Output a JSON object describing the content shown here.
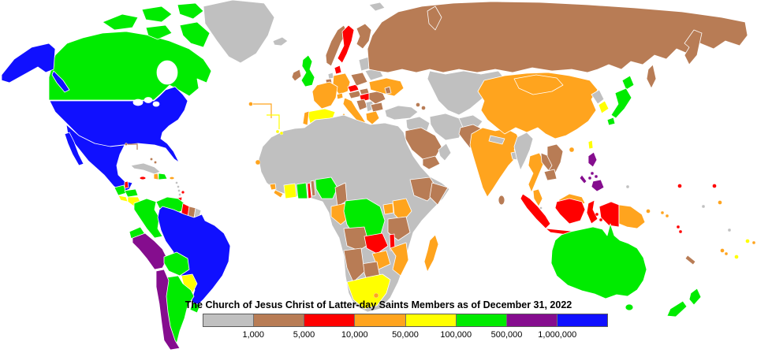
{
  "title": "The Church of Jesus Christ of Latter-day Saints Members as of December 31, 2022",
  "legend": {
    "labels": [
      "1,000",
      "5,000",
      "10,000",
      "50,000",
      "100,000",
      "500,000",
      "1,000,000"
    ],
    "order": [
      "gray",
      "brown",
      "red",
      "orange",
      "yellow",
      "green",
      "purple",
      "blue"
    ]
  },
  "palette": {
    "gray": "#C0C0C0",
    "brown": "#B87C55",
    "red": "#FF0000",
    "orange": "#FFA41E",
    "yellow": "#FFFF00",
    "green": "#00EB00",
    "purple": "#850D8E",
    "blue": "#1010FF",
    "water": "#FFFFFF"
  },
  "regions": {
    "greenland": "gray",
    "canada": "green",
    "united_states": "blue",
    "mexico": "blue",
    "belize": "red",
    "guatemala": "green",
    "honduras": "green",
    "el_salvador": "yellow",
    "nicaragua": "yellow",
    "costa_rica": "green",
    "panama": "green",
    "cuba": "gray",
    "jamaica": "red",
    "haiti": "orange",
    "dominican_republic": "green",
    "puerto_rico": "orange",
    "bahamas": "brown",
    "lesser_antilles": "gray",
    "barbados": "red",
    "trinidad_and_tobago": "red",
    "colombia": "green",
    "venezuela": "green",
    "guyana": "red",
    "suriname": "brown",
    "french_guiana": "gray",
    "ecuador": "green",
    "peru": "purple",
    "brazil": "blue",
    "bolivia": "green",
    "paraguay": "yellow",
    "chile": "purple",
    "argentina": "green",
    "uruguay": "green",
    "iceland": "gray",
    "united_kingdom": "green",
    "ireland": "brown",
    "norway": "brown",
    "sweden": "red",
    "finland": "brown",
    "denmark": "red",
    "netherlands": "gray",
    "belgium": "brown",
    "germany": "orange",
    "france": "orange",
    "spain": "yellow",
    "portugal": "orange",
    "italy": "orange",
    "switzerland": "orange",
    "czechia": "red",
    "austria": "brown",
    "slovakia": "brown",
    "poland": "brown",
    "hungary": "red",
    "romania": "brown",
    "bulgaria": "brown",
    "serbia": "gray",
    "croatia": "brown",
    "greece": "orange",
    "ukraine": "orange",
    "belarus": "gray",
    "baltic_states": "gray",
    "moldova": "brown",
    "russia": "brown",
    "svalbard": "gray",
    "kazakhstan_central_asia": "gray",
    "turkey": "gray",
    "levant_iraq": "gray",
    "iran": "gray",
    "afghanistan": "gray",
    "saudi_arabia": "brown",
    "yemen": "brown",
    "oman": "gray",
    "caucasus": "brown",
    "pakistan": "brown",
    "india": "orange",
    "nepal": "gray",
    "bangladesh": "gray",
    "sri_lanka": "brown",
    "china": "orange",
    "mongolia": "orange",
    "north_korea": "gray",
    "south_korea": "yellow",
    "japan": "green",
    "taiwan": "yellow",
    "myanmar": "gray",
    "thailand": "orange",
    "laos": "brown",
    "vietnam": "brown",
    "cambodia": "brown",
    "malaysia": "orange",
    "singapore": "gray",
    "indonesia": "red",
    "philippines": "purple",
    "papua_new_guinea": "orange",
    "north_africa": "gray",
    "sierra_leone": "orange",
    "liberia": "orange",
    "cote_divoire": "yellow",
    "ghana": "green",
    "togo": "red",
    "benin": "brown",
    "nigeria": "green",
    "cameroon": "brown",
    "congo_gabon": "orange",
    "dr_congo": "green",
    "uganda": "orange",
    "kenya": "orange",
    "tanzania": "brown",
    "ethiopia": "brown",
    "somalia": "brown",
    "angola": "brown",
    "zambia": "red",
    "malawi": "red",
    "mozambique": "orange",
    "zimbabwe": "orange",
    "botswana": "brown",
    "namibia": "brown",
    "south_africa": "yellow",
    "lesotho": "orange",
    "madagascar": "orange",
    "cape_verde": "orange",
    "azores": "orange",
    "canary_islands": "yellow",
    "australia": "green",
    "new_zealand": "green",
    "solomon_islands": "orange",
    "vanuatu": "red",
    "new_caledonia": "brown",
    "fiji": "orange",
    "samoa": "yellow",
    "american_samoa": "orange",
    "tonga": "yellow",
    "palau": "gray",
    "micronesia": "red",
    "marshall_islands": "red",
    "kiribati": "orange",
    "nauru": "gray",
    "tuvalu": "gray"
  }
}
